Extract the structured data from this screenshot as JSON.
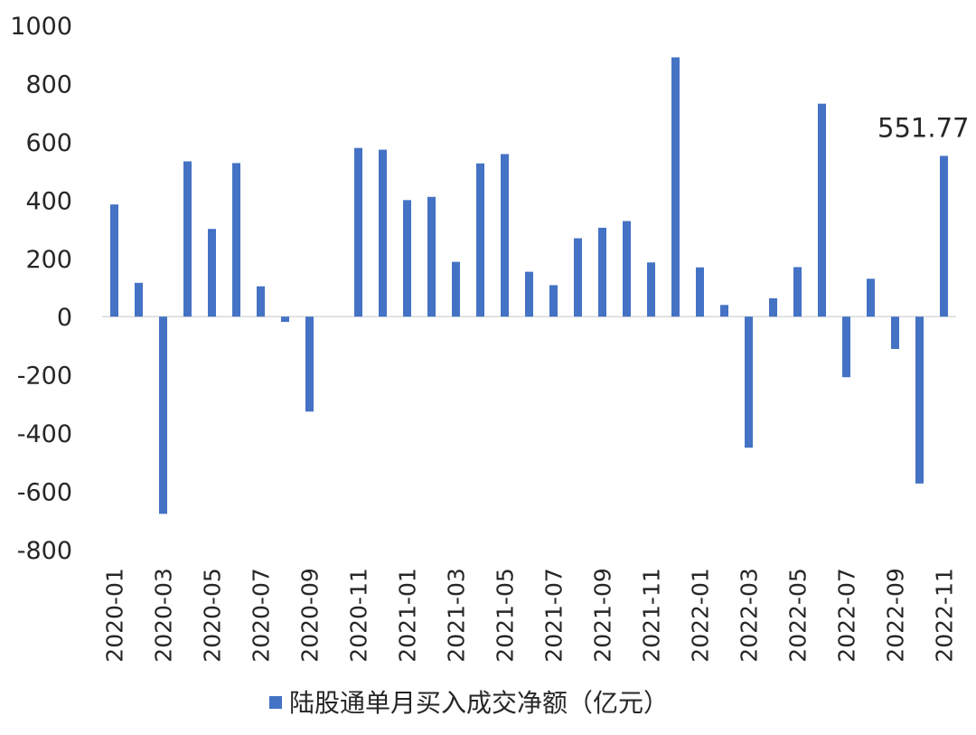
{
  "chart_data": {
    "type": "bar",
    "title": "",
    "xlabel": "",
    "ylabel": "",
    "ylim": [
      -800,
      1000
    ],
    "yticks": [
      1000,
      800,
      600,
      400,
      200,
      0,
      -200,
      -400,
      -600,
      -800
    ],
    "grid": false,
    "legend_position": "bottom",
    "bar_color": "#4472C4",
    "categories": [
      "2020-01",
      "2020-02",
      "2020-03",
      "2020-04",
      "2020-05",
      "2020-06",
      "2020-07",
      "2020-08",
      "2020-09",
      "2020-10",
      "2020-11",
      "2020-12",
      "2021-01",
      "2021-02",
      "2021-03",
      "2021-04",
      "2021-05",
      "2021-06",
      "2021-07",
      "2021-08",
      "2021-09",
      "2021-10",
      "2021-11",
      "2021-12",
      "2022-01",
      "2022-02",
      "2022-03",
      "2022-04",
      "2022-05",
      "2022-06",
      "2022-07",
      "2022-08",
      "2022-09",
      "2022-10",
      "2022-11"
    ],
    "tick_labels": [
      "2020-01",
      "2020-03",
      "2020-05",
      "2020-07",
      "2020-09",
      "2020-11",
      "2021-01",
      "2021-03",
      "2021-05",
      "2021-07",
      "2021-09",
      "2021-11",
      "2022-01",
      "2022-03",
      "2022-05",
      "2022-07",
      "2022-09",
      "2022-11"
    ],
    "series": [
      {
        "name": "陆股通单月买入成交净额（亿元）",
        "values": [
          385,
          116,
          -677,
          533,
          301,
          527,
          104,
          -18,
          -326,
          0,
          579,
          573,
          400,
          411,
          188,
          526,
          558,
          154,
          108,
          269,
          305,
          328,
          186,
          890,
          169,
          40,
          -450,
          63,
          170,
          731,
          -208,
          130,
          -111,
          -573,
          551.77
        ]
      }
    ],
    "annotations": [
      {
        "category": "2022-11",
        "text": "551.77"
      }
    ]
  }
}
